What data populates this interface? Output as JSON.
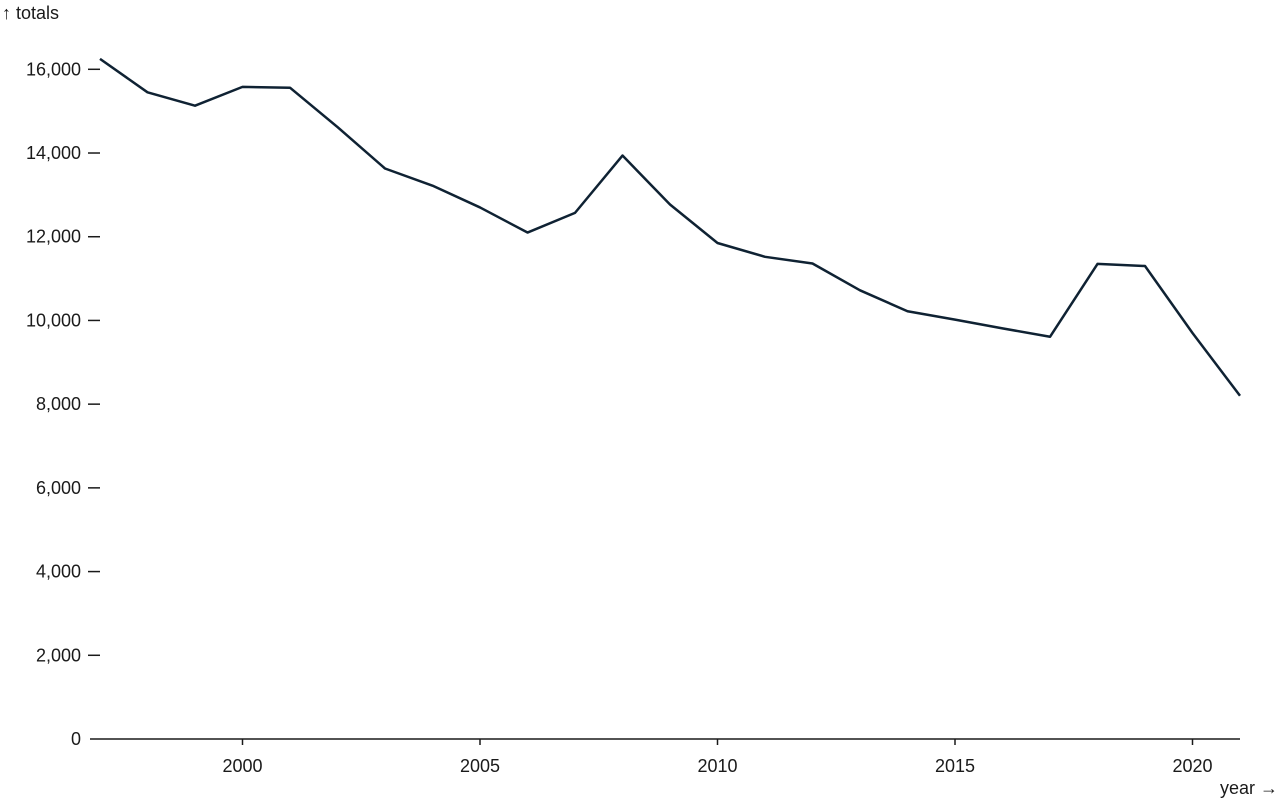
{
  "chart_data": {
    "type": "line",
    "ylabel": "↑ totals",
    "xlabel": "year →",
    "xlim": [
      1997,
      2021
    ],
    "ylim": [
      0,
      16700
    ],
    "x_ticks": [
      2000,
      2005,
      2010,
      2015,
      2020
    ],
    "y_ticks": [
      0,
      2000,
      4000,
      6000,
      8000,
      10000,
      12000,
      14000,
      16000
    ],
    "x_tick_labels": [
      "2000",
      "2005",
      "2010",
      "2015",
      "2020"
    ],
    "y_tick_labels": [
      "0",
      "2,000",
      "4,000",
      "6,000",
      "8,000",
      "10,000",
      "12,000",
      "14,000",
      "16,000"
    ],
    "grid": false,
    "color": "#0f2233",
    "series": [
      {
        "x": [
          1997,
          1998,
          1999,
          2000,
          2001,
          2002,
          2003,
          2004,
          2005,
          2006,
          2007,
          2008,
          2009,
          2010,
          2011,
          2012,
          2013,
          2014,
          2015,
          2016,
          2017,
          2018,
          2019,
          2020,
          2021
        ],
        "values": [
          16250,
          15450,
          15130,
          15580,
          15560,
          14620,
          13630,
          13220,
          12700,
          12100,
          12570,
          13940,
          12770,
          11850,
          11520,
          11360,
          10720,
          10220,
          10020,
          9810,
          9610,
          11350,
          11300,
          9700,
          8200
        ]
      }
    ]
  }
}
